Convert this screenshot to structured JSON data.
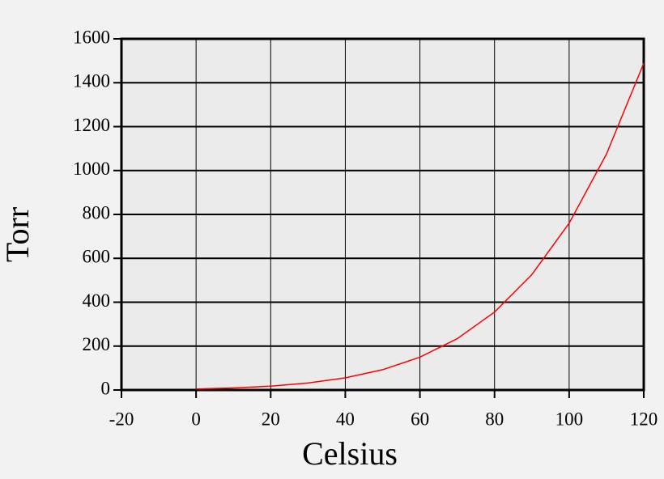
{
  "chart_data": {
    "type": "line",
    "x_label": "Celsius",
    "y_label": "Torr",
    "x": [
      0,
      10,
      20,
      30,
      40,
      50,
      60,
      70,
      80,
      90,
      100,
      110,
      120
    ],
    "series": [
      {
        "color": "#ff0000",
        "values": [
          4.6,
          9.2,
          17.5,
          31.8,
          55.3,
          92.5,
          149.4,
          233.7,
          355.1,
          525.8,
          760,
          1074.6,
          1489
        ]
      }
    ],
    "xlim": [
      -20,
      120
    ],
    "xticks": [
      -20,
      0,
      20,
      40,
      60,
      80,
      100,
      120
    ],
    "ylim": [
      0,
      1600
    ],
    "yticks": [
      0,
      200,
      400,
      600,
      800,
      1000,
      1200,
      1400,
      1600
    ],
    "grid": true
  }
}
